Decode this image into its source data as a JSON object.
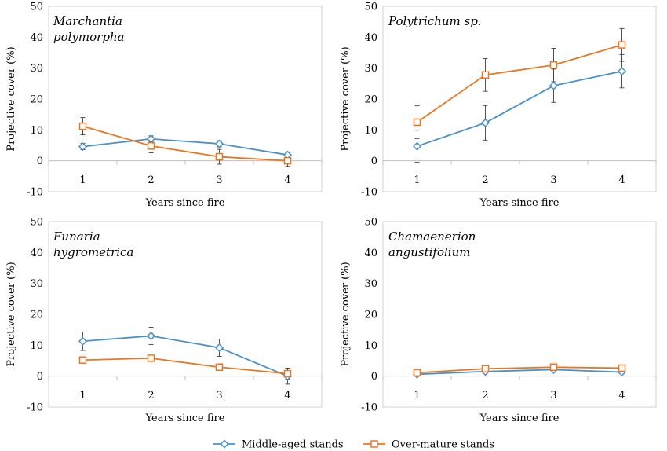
{
  "colors": {
    "middle": "#4a90c8",
    "over": "#e87722",
    "axis": "#bfbfbf",
    "frame": "#d0d0d0",
    "errbar": "#404040"
  },
  "legend": [
    {
      "name": "Middle-aged stands",
      "marker": "diamond",
      "color": "#4a90c8"
    },
    {
      "name": "Over-mature stands",
      "marker": "square",
      "color": "#e87722"
    }
  ],
  "chart_data": [
    {
      "type": "line",
      "title_lines": [
        "Marchantia",
        "polymorpha"
      ],
      "xlabel": "Years since fire",
      "ylabel": "Projective cover (%)",
      "categories": [
        "1",
        "2",
        "3",
        "4"
      ],
      "ylim": [
        -10,
        50
      ],
      "yticks": [
        "-10",
        "0",
        "10",
        "20",
        "30",
        "40",
        "50"
      ],
      "series": [
        {
          "name": "Middle-aged stands",
          "values": [
            4.6,
            7.1,
            5.5,
            1.9
          ],
          "errors": [
            1.0,
            1.0,
            1.0,
            0.8
          ]
        },
        {
          "name": "Over-mature stands",
          "values": [
            11.2,
            4.8,
            1.3,
            0.0
          ],
          "errors": [
            2.8,
            2.2,
            2.4,
            1.8
          ]
        }
      ]
    },
    {
      "type": "line",
      "title_lines": [
        "Polytrichum sp."
      ],
      "xlabel": "Years since fire",
      "ylabel": "Projective cover (%)",
      "categories": [
        "1",
        "2",
        "3",
        "4"
      ],
      "ylim": [
        -10,
        50
      ],
      "yticks": [
        "-10",
        "0",
        "10",
        "20",
        "30",
        "40",
        "50"
      ],
      "series": [
        {
          "name": "Middle-aged stands",
          "values": [
            4.7,
            12.3,
            24.3,
            29.0
          ],
          "errors": [
            5.2,
            5.6,
            5.4,
            5.4
          ]
        },
        {
          "name": "Over-mature stands",
          "values": [
            12.5,
            27.8,
            31.0,
            37.5
          ],
          "errors": [
            5.3,
            5.3,
            5.4,
            5.3
          ]
        }
      ]
    },
    {
      "type": "line",
      "title_lines": [
        "Funaria",
        "hygrometrica"
      ],
      "xlabel": "Years since fire",
      "ylabel": "Projective cover (%)",
      "categories": [
        "1",
        "2",
        "3",
        "4"
      ],
      "ylim": [
        -10,
        50
      ],
      "yticks": [
        "-10",
        "0",
        "10",
        "20",
        "30",
        "40",
        "50"
      ],
      "series": [
        {
          "name": "Middle-aged stands",
          "values": [
            11.3,
            13.0,
            9.2,
            0.0
          ],
          "errors": [
            3.0,
            2.8,
            2.8,
            2.6
          ]
        },
        {
          "name": "Over-mature stands",
          "values": [
            5.2,
            5.8,
            2.9,
            0.8
          ],
          "errors": [
            0.5,
            0.6,
            0.5,
            1.8
          ]
        }
      ]
    },
    {
      "type": "line",
      "title_lines": [
        "Chamaenerion",
        "angustifolium"
      ],
      "xlabel": "Years since fire",
      "ylabel": "Projective cover (%)",
      "categories": [
        "1",
        "2",
        "3",
        "4"
      ],
      "ylim": [
        -10,
        50
      ],
      "yticks": [
        "-10",
        "0",
        "10",
        "20",
        "30",
        "40",
        "50"
      ],
      "series": [
        {
          "name": "Middle-aged stands",
          "values": [
            0.6,
            1.5,
            2.1,
            1.3
          ],
          "errors": [
            0.3,
            0.4,
            0.4,
            0.4
          ]
        },
        {
          "name": "Over-mature stands",
          "values": [
            1.1,
            2.4,
            2.9,
            2.6
          ],
          "errors": [
            0.4,
            0.4,
            0.4,
            0.4
          ]
        }
      ]
    }
  ]
}
